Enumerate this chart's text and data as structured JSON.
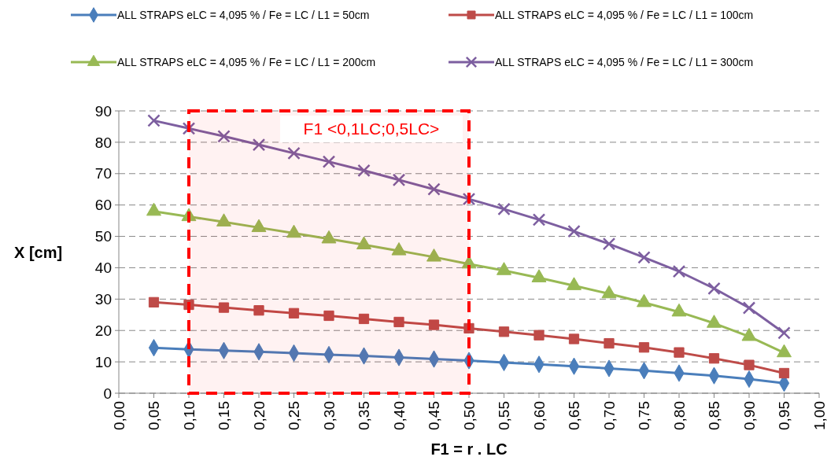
{
  "chart_data": {
    "type": "line",
    "xlabel": "F1 = r . LC",
    "ylabel": "X [cm]",
    "x": [
      0.05,
      0.1,
      0.15,
      0.2,
      0.25,
      0.3,
      0.35,
      0.4,
      0.45,
      0.5,
      0.55,
      0.6,
      0.65,
      0.7,
      0.75,
      0.8,
      0.85,
      0.9,
      0.95
    ],
    "series": [
      {
        "name": "ALL STRAPS eLC = 4,095 % / Fe = LC / L1 = 50cm",
        "color": "#4a7ebb",
        "marker": "diamond",
        "values": [
          14.5,
          14.0,
          13.6,
          13.2,
          12.8,
          12.3,
          11.9,
          11.4,
          10.9,
          10.4,
          9.8,
          9.2,
          8.6,
          7.9,
          7.2,
          6.4,
          5.6,
          4.5,
          3.2
        ]
      },
      {
        "name": "ALL STRAPS eLC = 4,095 % / Fe = LC / L1 = 100cm",
        "color": "#be4b48",
        "marker": "square",
        "values": [
          29.0,
          28.2,
          27.3,
          26.4,
          25.5,
          24.7,
          23.7,
          22.7,
          21.8,
          20.7,
          19.6,
          18.5,
          17.3,
          15.9,
          14.6,
          13.0,
          11.1,
          9.0,
          6.4
        ]
      },
      {
        "name": "ALL STRAPS eLC = 4,095 % / Fe = LC / L1 = 200cm",
        "color": "#98b954",
        "marker": "triangle",
        "values": [
          58.0,
          56.3,
          54.6,
          52.8,
          51.0,
          49.2,
          47.3,
          45.4,
          43.4,
          41.2,
          39.1,
          36.8,
          34.3,
          31.7,
          28.9,
          25.9,
          22.3,
          18.1,
          12.9
        ]
      },
      {
        "name": "ALL STRAPS eLC = 4,095 % / Fe = LC / L1 = 300cm",
        "color": "#7d5fa0",
        "marker": "cross",
        "values": [
          86.9,
          84.4,
          81.9,
          79.2,
          76.5,
          73.8,
          71.0,
          68.0,
          65.0,
          61.9,
          58.7,
          55.3,
          51.6,
          47.6,
          43.3,
          38.8,
          33.4,
          27.2,
          19.2
        ]
      }
    ],
    "xlim": [
      0,
      1
    ],
    "xticks": [
      {
        "value": 0,
        "label": "0,00"
      },
      {
        "value": 0.05,
        "label": "0,05"
      },
      {
        "value": 0.1,
        "label": "0,10"
      },
      {
        "value": 0.15,
        "label": "0,15"
      },
      {
        "value": 0.2,
        "label": "0,20"
      },
      {
        "value": 0.25,
        "label": "0,25"
      },
      {
        "value": 0.3,
        "label": "0,30"
      },
      {
        "value": 0.35,
        "label": "0,35"
      },
      {
        "value": 0.4,
        "label": "0,40"
      },
      {
        "value": 0.45,
        "label": "0,45"
      },
      {
        "value": 0.5,
        "label": "0,50"
      },
      {
        "value": 0.55,
        "label": "0,55"
      },
      {
        "value": 0.6,
        "label": "0,60"
      },
      {
        "value": 0.65,
        "label": "0,65"
      },
      {
        "value": 0.7,
        "label": "0,70"
      },
      {
        "value": 0.75,
        "label": "0,75"
      },
      {
        "value": 0.8,
        "label": "0,80"
      },
      {
        "value": 0.85,
        "label": "0,85"
      },
      {
        "value": 0.9,
        "label": "0,90"
      },
      {
        "value": 0.95,
        "label": "0,95"
      },
      {
        "value": 1,
        "label": "1,00"
      }
    ],
    "ylim": [
      0,
      90
    ],
    "yticks": [
      0,
      10,
      20,
      30,
      40,
      50,
      60,
      70,
      80,
      90
    ],
    "grid": "y",
    "legend": "top",
    "line_style": "solid",
    "bands": [
      {
        "axis": "x",
        "from": 0.1,
        "to": 0.5,
        "label": "F1 <0,1LC;0,5LC>",
        "color": "#ff0000"
      }
    ]
  }
}
